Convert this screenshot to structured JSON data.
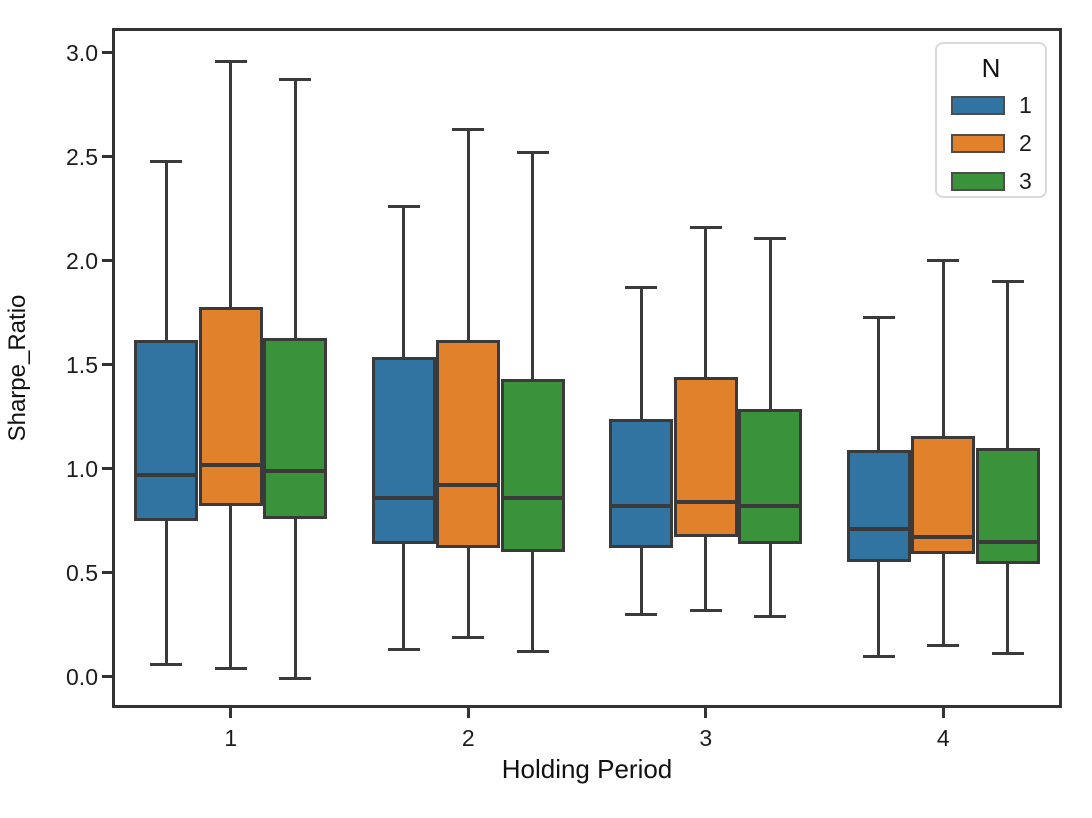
{
  "chart_data": {
    "type": "boxplot",
    "title": "",
    "xlabel": "Holding Period",
    "ylabel": "Sharpe_Ratio",
    "categories": [
      "1",
      "2",
      "3",
      "4"
    ],
    "ylim": [
      -0.15,
      3.12
    ],
    "yticks": [
      0.0,
      0.5,
      1.0,
      1.5,
      2.0,
      2.5,
      3.0
    ],
    "ytick_labels": [
      "0.0",
      "0.5",
      "1.0",
      "1.5",
      "2.0",
      "2.5",
      "3.0"
    ],
    "grid": false,
    "legend": {
      "title": "N",
      "position": "upper right",
      "entries": [
        {
          "label": "1",
          "color": "#3274a1"
        },
        {
          "label": "2",
          "color": "#e1812c"
        },
        {
          "label": "3",
          "color": "#3a923a"
        }
      ]
    },
    "edge_color": "#3a3a3a",
    "series": [
      {
        "name": "1",
        "color": "#3274a1",
        "boxes": [
          {
            "category": "1",
            "whisker_low": 0.06,
            "q1": 0.75,
            "median": 0.97,
            "q3": 1.62,
            "whisker_high": 2.48
          },
          {
            "category": "2",
            "whisker_low": 0.13,
            "q1": 0.64,
            "median": 0.86,
            "q3": 1.54,
            "whisker_high": 2.26
          },
          {
            "category": "3",
            "whisker_low": 0.3,
            "q1": 0.62,
            "median": 0.82,
            "q3": 1.24,
            "whisker_high": 1.87
          },
          {
            "category": "4",
            "whisker_low": 0.1,
            "q1": 0.55,
            "median": 0.71,
            "q3": 1.09,
            "whisker_high": 1.73
          }
        ]
      },
      {
        "name": "2",
        "color": "#e1812c",
        "boxes": [
          {
            "category": "1",
            "whisker_low": 0.04,
            "q1": 0.82,
            "median": 1.02,
            "q3": 1.78,
            "whisker_high": 2.96
          },
          {
            "category": "2",
            "whisker_low": 0.19,
            "q1": 0.62,
            "median": 0.92,
            "q3": 1.62,
            "whisker_high": 2.63
          },
          {
            "category": "3",
            "whisker_low": 0.32,
            "q1": 0.67,
            "median": 0.84,
            "q3": 1.44,
            "whisker_high": 2.16
          },
          {
            "category": "4",
            "whisker_low": 0.15,
            "q1": 0.59,
            "median": 0.67,
            "q3": 1.16,
            "whisker_high": 2.0
          }
        ]
      },
      {
        "name": "3",
        "color": "#3a923a",
        "boxes": [
          {
            "category": "1",
            "whisker_low": -0.01,
            "q1": 0.76,
            "median": 0.99,
            "q3": 1.63,
            "whisker_high": 2.87
          },
          {
            "category": "2",
            "whisker_low": 0.12,
            "q1": 0.6,
            "median": 0.86,
            "q3": 1.43,
            "whisker_high": 2.52
          },
          {
            "category": "3",
            "whisker_low": 0.29,
            "q1": 0.64,
            "median": 0.82,
            "q3": 1.29,
            "whisker_high": 2.11
          },
          {
            "category": "4",
            "whisker_low": 0.11,
            "q1": 0.54,
            "median": 0.65,
            "q3": 1.1,
            "whisker_high": 1.9
          }
        ]
      }
    ]
  }
}
